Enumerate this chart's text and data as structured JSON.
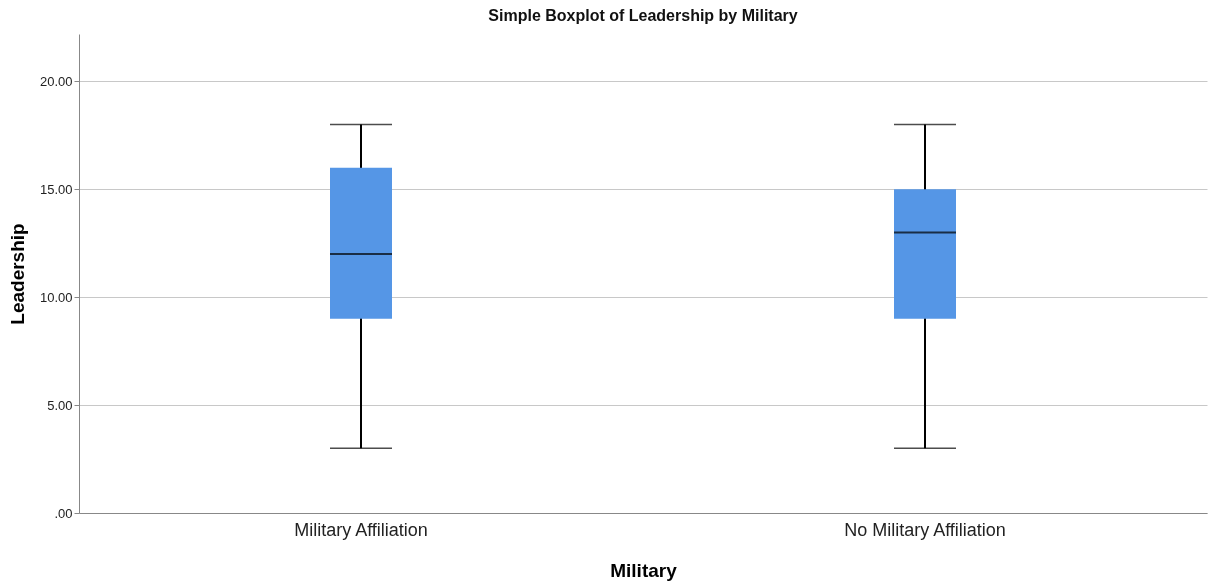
{
  "chart_data": {
    "type": "box",
    "title": "Simple Boxplot of Leadership by Military",
    "xlabel": "Military",
    "ylabel": "Leadership",
    "categories": [
      "Military Affiliation",
      "No Military Affiliation"
    ],
    "series": [
      {
        "color": "#5596e6",
        "boxes": [
          {
            "low": 3,
            "q1": 9,
            "median": 12,
            "q3": 16,
            "high": 18
          },
          {
            "low": 3,
            "q1": 9,
            "median": 13,
            "q3": 15,
            "high": 18
          }
        ]
      }
    ],
    "ylim": [
      0,
      22.2
    ],
    "yticks": [
      {
        "value": 0,
        "label": ".00"
      },
      {
        "value": 5,
        "label": "5.00"
      },
      {
        "value": 10,
        "label": "10.00"
      },
      {
        "value": 15,
        "label": "15.00"
      },
      {
        "value": 20,
        "label": "20.00"
      }
    ],
    "grid": "y"
  }
}
